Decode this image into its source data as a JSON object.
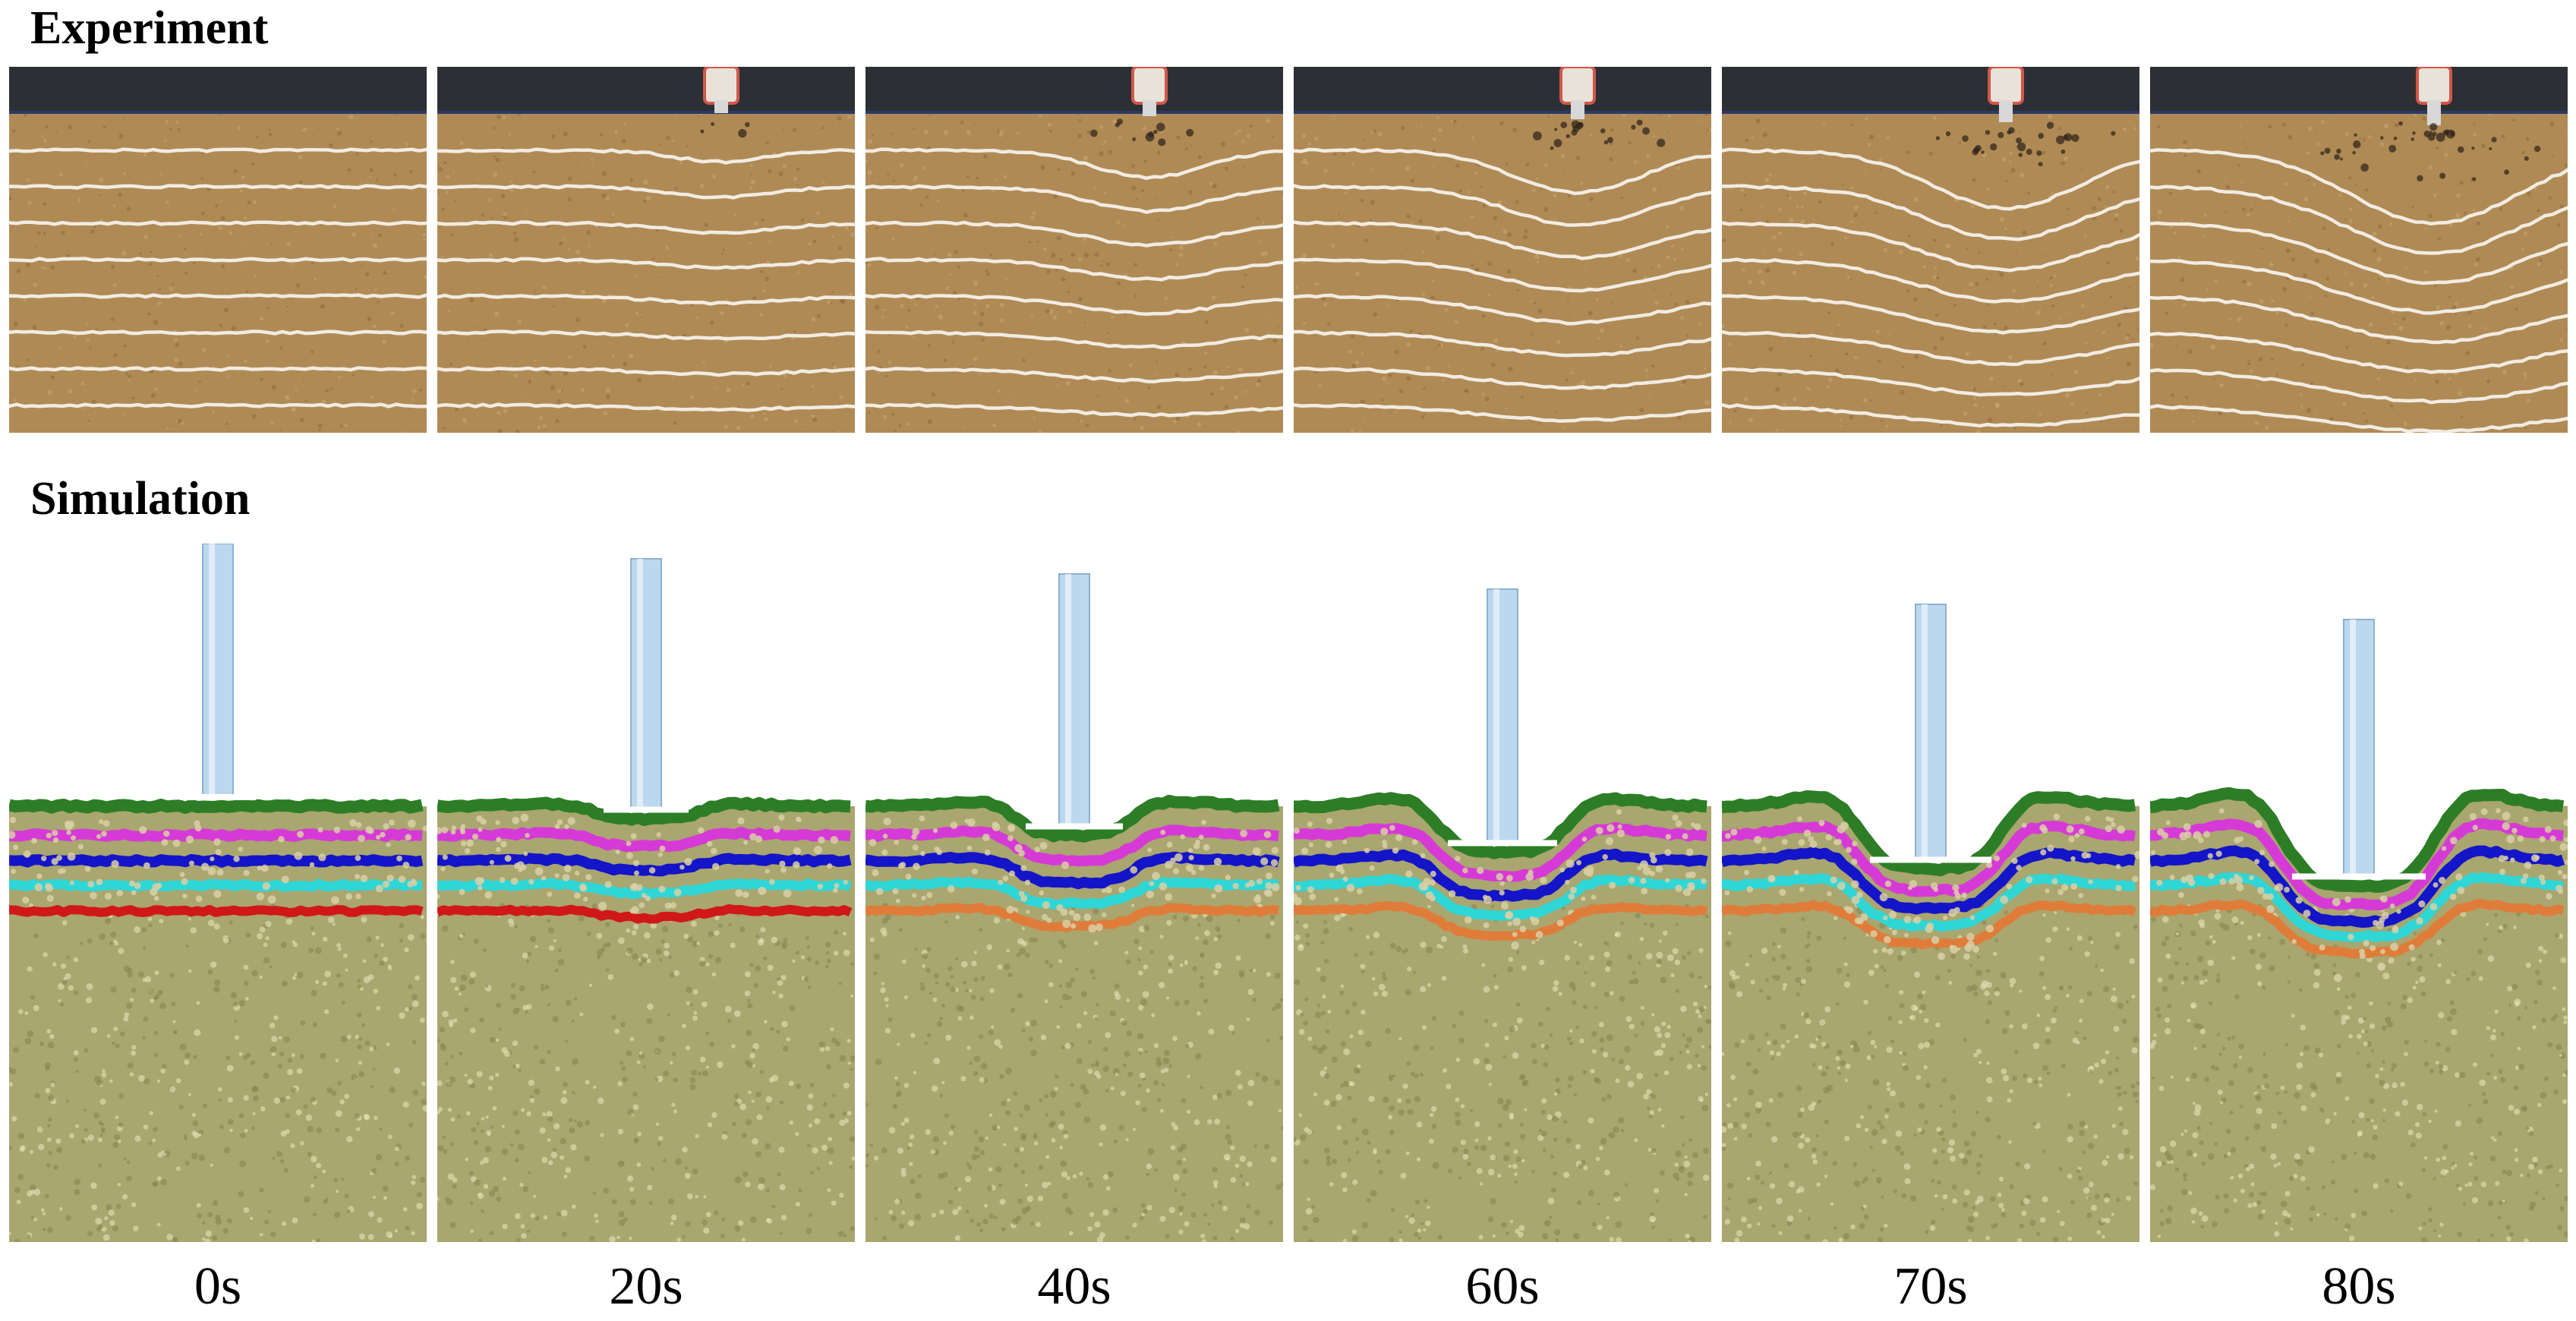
{
  "figure": {
    "experiment_heading": "Experiment",
    "simulation_heading": "Simulation",
    "time_labels": [
      "0s",
      "20s",
      "40s",
      "60s",
      "70s",
      "80s"
    ]
  },
  "panels": [
    {
      "time": "0s",
      "depression": 0.0,
      "surface_disturbance": 0.0
    },
    {
      "time": "20s",
      "depression": 0.15,
      "surface_disturbance": 0.1
    },
    {
      "time": "40s",
      "depression": 0.35,
      "surface_disturbance": 0.25
    },
    {
      "time": "60s",
      "depression": 0.55,
      "surface_disturbance": 0.45
    },
    {
      "time": "70s",
      "depression": 0.75,
      "surface_disturbance": 0.65
    },
    {
      "time": "80s",
      "depression": 0.95,
      "surface_disturbance": 0.9
    }
  ],
  "colors": {
    "sand": "#b08a55",
    "sand_dark": "#8c6a3c",
    "white_layer": "#f4f1ea",
    "apparatus": "#2c2f33",
    "simulation_fill": "#a9a66f",
    "green_layer": "#2d7d27",
    "magenta_layer": "#d63ad6",
    "blue_layer": "#1414c8",
    "cyan_layer": "#2fd6d6",
    "red_layer": "#d01818",
    "orange_layer": "#e07c3a",
    "rod": "#bcd8ee"
  }
}
